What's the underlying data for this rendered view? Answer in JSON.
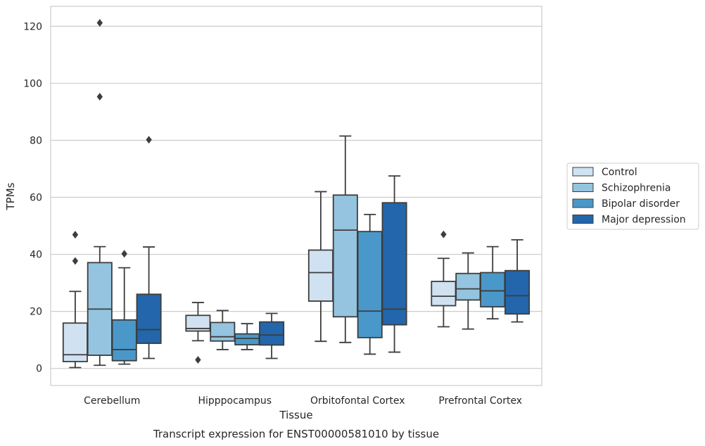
{
  "chart_data": {
    "type": "box",
    "title": "Transcript expression for ENST00000581010 by tissue",
    "xlabel": "Tissue",
    "ylabel": "TPMs",
    "ylim": [
      -6,
      127
    ],
    "yticks": [
      0,
      20,
      40,
      60,
      80,
      100,
      120
    ],
    "grid": true,
    "legend_position": "right",
    "categories": [
      "Cerebellum",
      "Hipppocampus",
      "Orbitofontal Cortex",
      "Prefrontal Cortex"
    ],
    "series": [
      {
        "name": "Control",
        "color": "#d0e1f2",
        "boxes": [
          {
            "whislo": 0.3,
            "q1": 2.4,
            "med": 4.8,
            "q3": 15.9,
            "whishi": 27.0,
            "fliers": [
              37.7,
              46.9
            ]
          },
          {
            "whislo": 9.7,
            "q1": 13.1,
            "med": 14.0,
            "q3": 18.6,
            "whishi": 23.1,
            "fliers": [
              3.0
            ]
          },
          {
            "whislo": 9.5,
            "q1": 23.6,
            "med": 33.6,
            "q3": 41.5,
            "whishi": 62.0,
            "fliers": []
          },
          {
            "whislo": 14.6,
            "q1": 22.0,
            "med": 25.3,
            "q3": 30.5,
            "whishi": 38.6,
            "fliers": [
              47.0
            ]
          }
        ]
      },
      {
        "name": "Schizophrenia",
        "color": "#94c4df",
        "boxes": [
          {
            "whislo": 1.1,
            "q1": 4.6,
            "med": 20.8,
            "q3": 37.1,
            "whishi": 42.7,
            "fliers": [
              95.3,
              121.2
            ]
          },
          {
            "whislo": 6.6,
            "q1": 9.6,
            "med": 11.1,
            "q3": 16.1,
            "whishi": 20.3,
            "fliers": []
          },
          {
            "whislo": 9.1,
            "q1": 18.1,
            "med": 48.5,
            "q3": 60.8,
            "whishi": 81.5,
            "fliers": []
          },
          {
            "whislo": 13.8,
            "q1": 24.0,
            "med": 27.9,
            "q3": 33.3,
            "whishi": 40.5,
            "fliers": []
          }
        ]
      },
      {
        "name": "Bipolar disorder",
        "color": "#4a98c9",
        "boxes": [
          {
            "whislo": 1.5,
            "q1": 2.7,
            "med": 6.6,
            "q3": 17.0,
            "whishi": 35.3,
            "fliers": [
              40.2
            ]
          },
          {
            "whislo": 6.6,
            "q1": 8.3,
            "med": 10.5,
            "q3": 12.1,
            "whishi": 15.7,
            "fliers": []
          },
          {
            "whislo": 5.0,
            "q1": 10.8,
            "med": 20.1,
            "q3": 48.0,
            "whishi": 54.0,
            "fliers": []
          },
          {
            "whislo": 17.4,
            "q1": 21.6,
            "med": 27.2,
            "q3": 33.6,
            "whishi": 42.7,
            "fliers": []
          }
        ]
      },
      {
        "name": "Major depression",
        "color": "#2366ab",
        "boxes": [
          {
            "whislo": 3.5,
            "q1": 8.8,
            "med": 13.6,
            "q3": 26.0,
            "whishi": 42.6,
            "fliers": [
              80.2
            ]
          },
          {
            "whislo": 3.5,
            "q1": 8.2,
            "med": 11.7,
            "q3": 16.3,
            "whishi": 19.3,
            "fliers": []
          },
          {
            "whislo": 5.7,
            "q1": 15.3,
            "med": 20.8,
            "q3": 58.1,
            "whishi": 67.5,
            "fliers": []
          },
          {
            "whislo": 16.3,
            "q1": 19.1,
            "med": 25.5,
            "q3": 34.3,
            "whishi": 45.1,
            "fliers": []
          }
        ]
      }
    ]
  }
}
